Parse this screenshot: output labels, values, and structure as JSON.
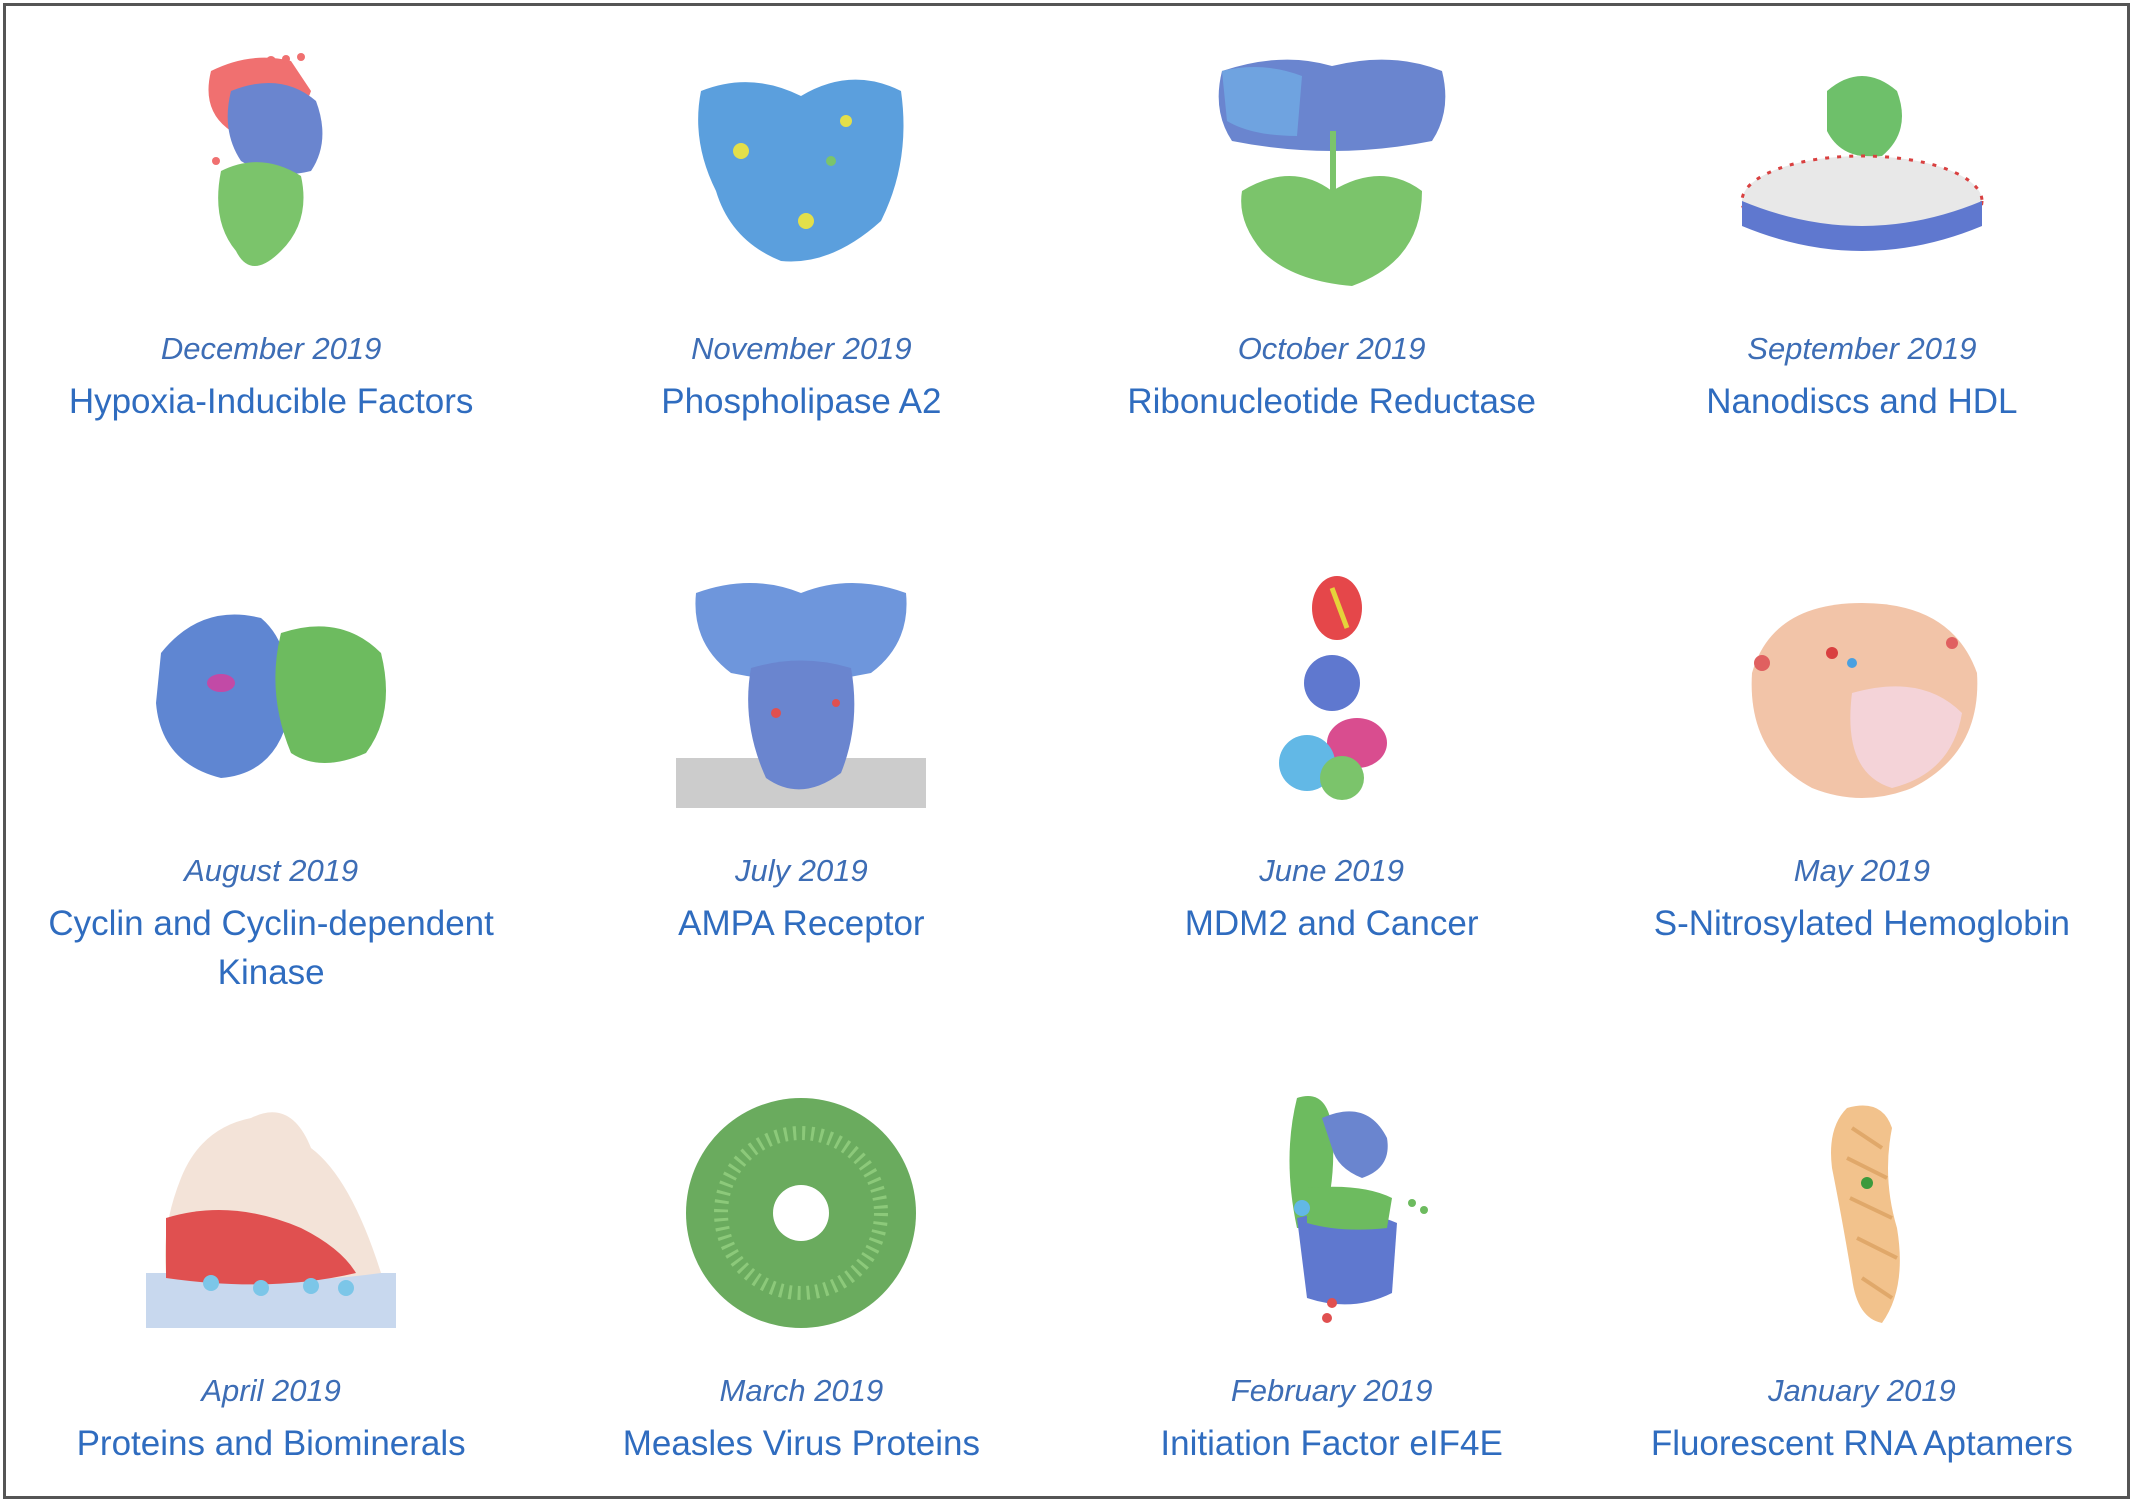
{
  "colors": {
    "date": "#3d6db5",
    "title": "#2f6cbf",
    "border": "#555555"
  },
  "molecules": [
    {
      "date": "December 2019",
      "title": "Hypoxia-Inducible Factors",
      "icon": "hif-structure"
    },
    {
      "date": "November 2019",
      "title": "Phospholipase A2",
      "icon": "phospholipase-structure"
    },
    {
      "date": "October 2019",
      "title": "Ribonucleotide Reductase",
      "icon": "reductase-structure"
    },
    {
      "date": "September 2019",
      "title": "Nanodiscs and HDL",
      "icon": "nanodisc-structure"
    },
    {
      "date": "August 2019",
      "title": "Cyclin and Cyclin-dependent Kinase",
      "icon": "cyclin-structure"
    },
    {
      "date": "July 2019",
      "title": "AMPA Receptor",
      "icon": "ampa-structure"
    },
    {
      "date": "June 2019",
      "title": "MDM2 and Cancer",
      "icon": "mdm2-structure"
    },
    {
      "date": "May 2019",
      "title": "S-Nitrosylated Hemoglobin",
      "icon": "hemoglobin-structure"
    },
    {
      "date": "April 2019",
      "title": "Proteins and Biominerals",
      "icon": "biomineral-structure"
    },
    {
      "date": "March 2019",
      "title": "Measles Virus Proteins",
      "icon": "measles-structure"
    },
    {
      "date": "February 2019",
      "title": "Initiation Factor eIF4E",
      "icon": "eif4e-structure"
    },
    {
      "date": "January 2019",
      "title": "Fluorescent RNA Aptamers",
      "icon": "rna-aptamer-structure"
    }
  ]
}
